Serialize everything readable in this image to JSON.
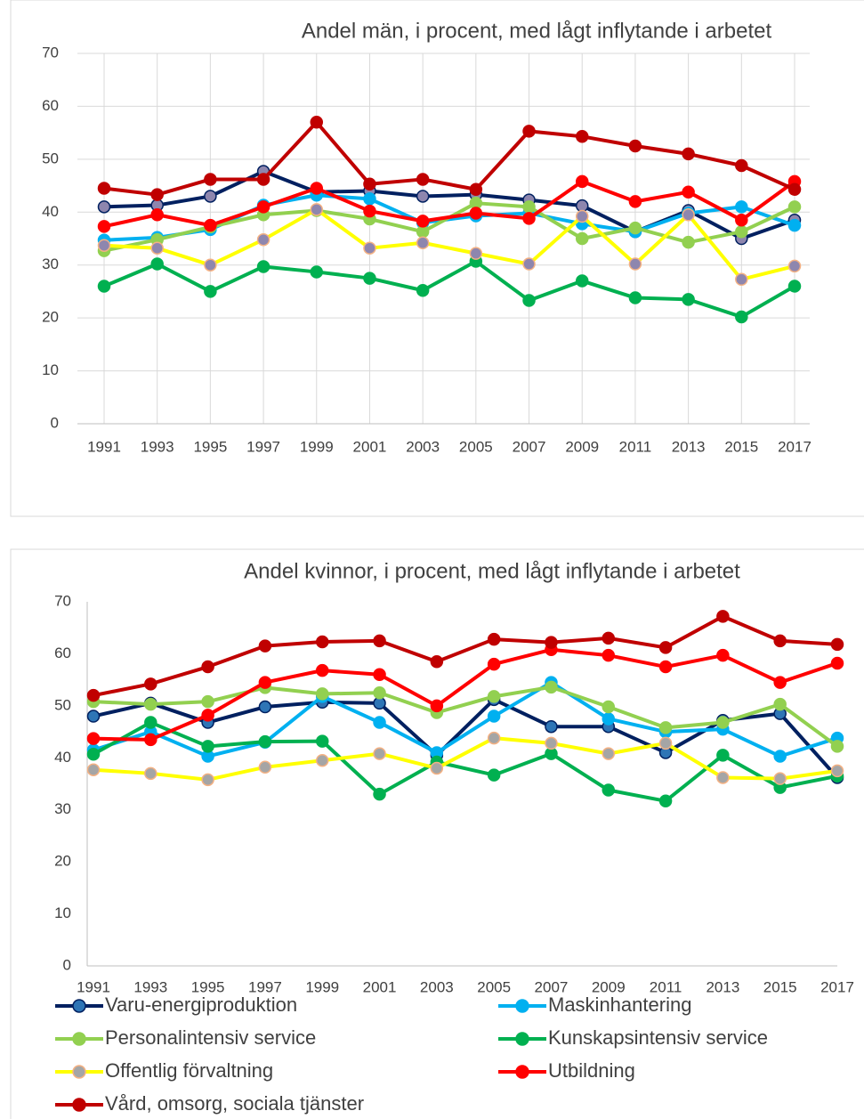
{
  "chart_data": [
    {
      "type": "line",
      "title": "Andel män, i procent, med lågt inflytande i arbetet",
      "categories": [
        "1991",
        "1993",
        "1995",
        "1997",
        "1999",
        "2001",
        "2003",
        "2005",
        "2007",
        "2009",
        "2011",
        "2013",
        "2015",
        "2017"
      ],
      "ylim": [
        0,
        70
      ],
      "yticks": [
        0,
        10,
        20,
        30,
        40,
        50,
        60,
        70
      ],
      "grid": true,
      "series": [
        {
          "color": "#002060",
          "marker_fill": "#8e86ae",
          "values": [
            41,
            41.3,
            43,
            47.7,
            43.8,
            44,
            43,
            43.3,
            42.3,
            41.2,
            36.3,
            40.3,
            35,
            38.5
          ]
        },
        {
          "color": "#00b0f0",
          "values": [
            34.7,
            35.2,
            36.7,
            41.3,
            43.2,
            42.5,
            38,
            39.3,
            39.8,
            37.8,
            36.3,
            39.8,
            41,
            37.5
          ]
        },
        {
          "color": "#92d050",
          "values": [
            32.7,
            34.8,
            37.2,
            39.5,
            40.3,
            38.7,
            36.3,
            41.7,
            41,
            35,
            37,
            34.3,
            36.3,
            41
          ]
        },
        {
          "color": "#00b050",
          "values": [
            26,
            30.2,
            25,
            29.7,
            28.7,
            27.5,
            25.2,
            30.7,
            23.3,
            27,
            23.8,
            23.5,
            20.2,
            26
          ]
        },
        {
          "color": "#ffff00",
          "marker_fill": "#8e86ae",
          "marker_stroke": "#f4b183",
          "values": [
            33.7,
            33.2,
            30,
            34.8,
            40.5,
            33.2,
            34.2,
            32.2,
            30.2,
            39.2,
            30.2,
            39.5,
            27.3,
            29.8
          ]
        },
        {
          "color": "#ff0000",
          "values": [
            37.3,
            39.5,
            37.5,
            41,
            44.5,
            40.2,
            38.3,
            39.8,
            38.8,
            45.8,
            42,
            43.8,
            38.5,
            45.8
          ]
        },
        {
          "color": "#c00000",
          "values": [
            44.5,
            43.3,
            46.2,
            46.2,
            57,
            45.3,
            46.2,
            44.3,
            55.3,
            54.3,
            52.5,
            51,
            48.8,
            44.3
          ]
        }
      ]
    },
    {
      "type": "line",
      "title": "Andel kvinnor, i procent, med lågt inflytande i arbetet",
      "categories": [
        "1991",
        "1993",
        "1995",
        "1997",
        "1999",
        "2001",
        "2003",
        "2005",
        "2007",
        "2009",
        "2011",
        "2013",
        "2015",
        "2017"
      ],
      "ylim": [
        0,
        70
      ],
      "yticks": [
        0,
        10,
        20,
        30,
        40,
        50,
        60,
        70
      ],
      "grid": false,
      "legend": "bottom",
      "series": [
        {
          "name": "Varu-energiproduktion",
          "color": "#002060",
          "marker_fill": "#2e75b6",
          "values": [
            48,
            50.5,
            46.8,
            49.8,
            50.7,
            50.5,
            40.5,
            51.2,
            46,
            46,
            41,
            47.2,
            48.5,
            36.2
          ]
        },
        {
          "name": "Maskinhantering",
          "color": "#00b0f0",
          "values": [
            41.5,
            45,
            40.3,
            43,
            51.8,
            46.8,
            41,
            48,
            54.5,
            47.5,
            45,
            45.5,
            40.3,
            43.8
          ]
        },
        {
          "name": "Personalintensiv service",
          "color": "#92d050",
          "values": [
            50.8,
            50.3,
            50.8,
            53.5,
            52.3,
            52.5,
            48.7,
            51.8,
            53.6,
            49.8,
            45.8,
            46.8,
            50.3,
            42.2
          ]
        },
        {
          "name": "Kunskapsintensiv service",
          "color": "#00b050",
          "values": [
            40.7,
            46.8,
            42.2,
            43.1,
            43.2,
            33,
            39.2,
            36.7,
            40.8,
            33.8,
            31.7,
            40.5,
            34.3,
            36.5
          ]
        },
        {
          "name": "Offentlig förvaltning",
          "color": "#ffff00",
          "marker_fill": "#a5a5a5",
          "marker_stroke": "#f4b183",
          "values": [
            37.7,
            37,
            35.8,
            38.2,
            39.5,
            40.8,
            38,
            43.8,
            42.8,
            40.8,
            42.8,
            36.2,
            36,
            37.5
          ]
        },
        {
          "name": "Utbildning",
          "color": "#ff0000",
          "values": [
            43.7,
            43.5,
            48.2,
            54.5,
            56.8,
            56,
            50,
            58,
            60.8,
            59.7,
            57.5,
            59.7,
            54.5,
            58.2
          ]
        },
        {
          "name": "Vård, omsorg, sociala tjänster",
          "color": "#c00000",
          "values": [
            52,
            54.2,
            57.5,
            61.5,
            62.3,
            62.5,
            58.5,
            62.8,
            62.2,
            63,
            61.2,
            67.2,
            62.5,
            61.8
          ]
        }
      ]
    }
  ]
}
